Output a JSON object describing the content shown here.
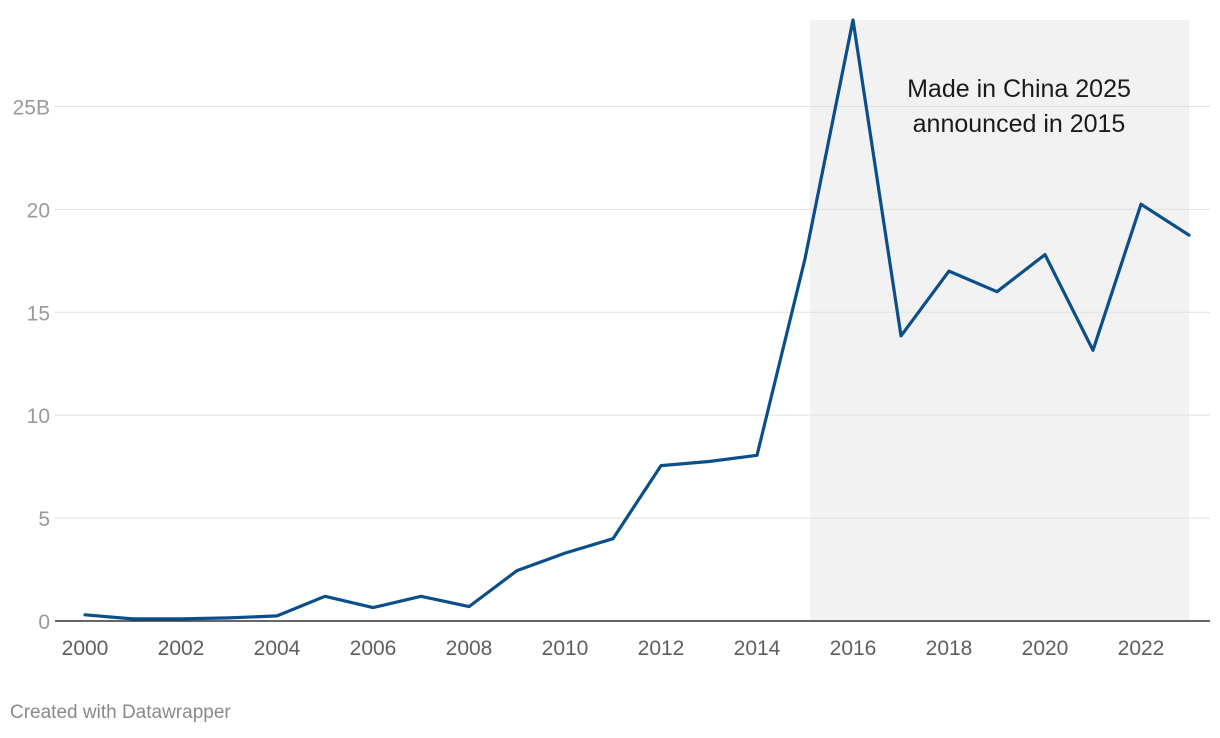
{
  "chart_data": {
    "type": "line",
    "x": [
      2000,
      2001,
      2002,
      2003,
      2004,
      2005,
      2006,
      2007,
      2008,
      2009,
      2010,
      2011,
      2012,
      2013,
      2014,
      2015,
      2016,
      2017,
      2018,
      2019,
      2020,
      2021,
      2022,
      2023
    ],
    "series": [
      {
        "values": [
          0.3,
          0.1,
          0.1,
          0.15,
          0.25,
          1.2,
          0.65,
          1.2,
          0.7,
          2.45,
          3.3,
          4.0,
          7.55,
          7.75,
          8.05,
          17.6,
          29.2,
          13.85,
          17.0,
          16.0,
          17.8,
          13.15,
          20.25,
          18.75
        ],
        "color": "#0b4f8a"
      }
    ],
    "xlim": [
      2000,
      2023
    ],
    "ylim": [
      0,
      29.2
    ],
    "xticks": [
      "2000",
      "2002",
      "2004",
      "2006",
      "2008",
      "2010",
      "2012",
      "2014",
      "2016",
      "2018",
      "2020",
      "2022"
    ],
    "yticks": [
      {
        "value": 0,
        "label": "0"
      },
      {
        "value": 5,
        "label": "5"
      },
      {
        "value": 10,
        "label": "10"
      },
      {
        "value": 15,
        "label": "15"
      },
      {
        "value": 20,
        "label": "20"
      },
      {
        "value": 25,
        "label": "25B"
      }
    ],
    "grid": true,
    "highlight_range": {
      "x_start": 2015.1,
      "x_end": 2023
    },
    "annotation": {
      "line1": "Made in China 2025",
      "line2": "announced in 2015"
    }
  },
  "footer": {
    "credit": "Created with Datawrapper"
  }
}
